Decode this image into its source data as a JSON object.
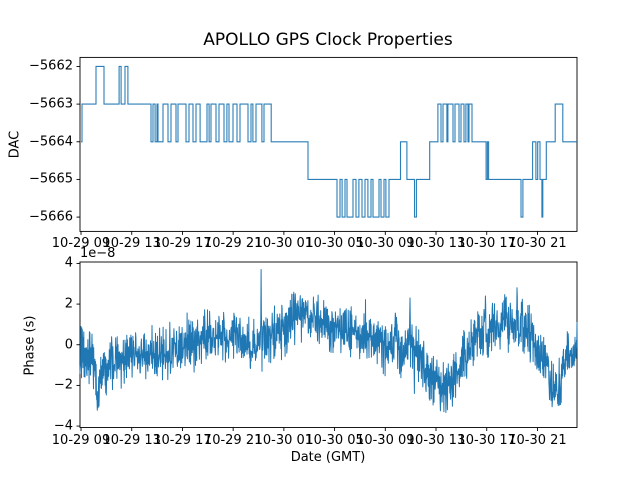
{
  "figure": {
    "title": "APOLLO GPS Clock Properties",
    "background": "#ffffff",
    "line_color": "#1f77b4"
  },
  "chart_data": [
    {
      "type": "line",
      "subtype": "step-post",
      "ylabel": "DAC",
      "yticks": [
        -5662,
        -5663,
        -5664,
        -5665,
        -5666
      ],
      "ytick_labels": [
        "−5662",
        "−5663",
        "−5664",
        "−5665",
        "−5666"
      ],
      "ylim": [
        -5666.38,
        -5661.76
      ],
      "x_unit_note": "hours after 10-29 09:00 GMT",
      "xlim": [
        -0.08,
        39.12
      ],
      "xticks": [
        0,
        4,
        8,
        12,
        16,
        20,
        24,
        28,
        32,
        36
      ],
      "xtick_labels": [
        "10-29 09",
        "10-29 13",
        "10-29 17",
        "10-29 21",
        "10-30 01",
        "10-30 05",
        "10-30 09",
        "10-30 13",
        "10-30 17",
        "10-30 21"
      ],
      "steps": [
        [
          0.0,
          -5664
        ],
        [
          0.08,
          -5663
        ],
        [
          1.18,
          -5662
        ],
        [
          1.81,
          -5663
        ],
        [
          3.0,
          -5662
        ],
        [
          3.16,
          -5663
        ],
        [
          3.47,
          -5662
        ],
        [
          3.7,
          -5663
        ],
        [
          5.52,
          -5664
        ],
        [
          5.68,
          -5663
        ],
        [
          5.84,
          -5664
        ],
        [
          5.99,
          -5663
        ],
        [
          6.07,
          -5664
        ],
        [
          6.47,
          -5663
        ],
        [
          6.86,
          -5664
        ],
        [
          7.1,
          -5663
        ],
        [
          7.49,
          -5664
        ],
        [
          7.65,
          -5663
        ],
        [
          8.28,
          -5664
        ],
        [
          8.52,
          -5663
        ],
        [
          8.83,
          -5664
        ],
        [
          9.07,
          -5663
        ],
        [
          9.39,
          -5664
        ],
        [
          9.94,
          -5663
        ],
        [
          10.1,
          -5664
        ],
        [
          10.25,
          -5663
        ],
        [
          10.65,
          -5664
        ],
        [
          10.88,
          -5663
        ],
        [
          11.28,
          -5664
        ],
        [
          11.51,
          -5663
        ],
        [
          11.67,
          -5664
        ],
        [
          11.99,
          -5663
        ],
        [
          12.3,
          -5664
        ],
        [
          12.54,
          -5663
        ],
        [
          13.17,
          -5664
        ],
        [
          13.41,
          -5663
        ],
        [
          13.56,
          -5664
        ],
        [
          13.8,
          -5663
        ],
        [
          14.27,
          -5664
        ],
        [
          14.43,
          -5663
        ],
        [
          15.0,
          -5664
        ],
        [
          17.9,
          -5665
        ],
        [
          20.19,
          -5666
        ],
        [
          20.43,
          -5665
        ],
        [
          20.59,
          -5666
        ],
        [
          20.82,
          -5665
        ],
        [
          20.98,
          -5666
        ],
        [
          21.45,
          -5665
        ],
        [
          21.69,
          -5666
        ],
        [
          21.92,
          -5665
        ],
        [
          22.16,
          -5666
        ],
        [
          22.4,
          -5665
        ],
        [
          22.63,
          -5666
        ],
        [
          22.87,
          -5665
        ],
        [
          23.03,
          -5666
        ],
        [
          23.5,
          -5665
        ],
        [
          23.66,
          -5666
        ],
        [
          23.9,
          -5665
        ],
        [
          24.05,
          -5666
        ],
        [
          24.29,
          -5665
        ],
        [
          25.2,
          -5664
        ],
        [
          25.7,
          -5665
        ],
        [
          26.3,
          -5666
        ],
        [
          26.45,
          -5665
        ],
        [
          27.5,
          -5664
        ],
        [
          28.15,
          -5663
        ],
        [
          28.39,
          -5664
        ],
        [
          28.55,
          -5663
        ],
        [
          28.86,
          -5664
        ],
        [
          28.94,
          -5663
        ],
        [
          29.34,
          -5664
        ],
        [
          29.5,
          -5663
        ],
        [
          29.81,
          -5664
        ],
        [
          29.97,
          -5663
        ],
        [
          30.21,
          -5664
        ],
        [
          30.36,
          -5663
        ],
        [
          30.52,
          -5664
        ],
        [
          30.6,
          -5663
        ],
        [
          30.84,
          -5664
        ],
        [
          31.95,
          -5665
        ],
        [
          32.05,
          -5664
        ],
        [
          32.15,
          -5665
        ],
        [
          34.7,
          -5666
        ],
        [
          34.85,
          -5665
        ],
        [
          35.62,
          -5664
        ],
        [
          35.88,
          -5665
        ],
        [
          36.02,
          -5664
        ],
        [
          36.2,
          -5665
        ],
        [
          36.35,
          -5666
        ],
        [
          36.42,
          -5665
        ],
        [
          36.7,
          -5664
        ],
        [
          37.4,
          -5663
        ],
        [
          38.0,
          -5664
        ]
      ]
    },
    {
      "type": "line",
      "ylabel": "Phase (s)",
      "xlabel": "Date (GMT)",
      "offset_text": "1e−8",
      "yticks": [
        4,
        2,
        0,
        -2,
        -4
      ],
      "ytick_labels": [
        "4",
        "2",
        "0",
        "−2",
        "−4"
      ],
      "ylim": [
        -4.07,
        4.07
      ],
      "xlim": [
        -0.08,
        39.12
      ],
      "xticks": [
        0,
        4,
        8,
        12,
        16,
        20,
        24,
        28,
        32,
        36
      ],
      "xtick_labels": [
        "10-29 09",
        "10-29 13",
        "10-29 17",
        "10-29 21",
        "10-30 01",
        "10-30 05",
        "10-30 09",
        "10-30 13",
        "10-30 17",
        "10-30 21"
      ],
      "units_scale": "1e-8 s",
      "n_points": 1700,
      "noise_halfband": 1.55,
      "trend": [
        [
          -0.08,
          -0.4
        ],
        [
          0.8,
          -0.6
        ],
        [
          1.3,
          -2.3
        ],
        [
          1.7,
          -1.5
        ],
        [
          2.5,
          -0.9
        ],
        [
          4.0,
          -0.6
        ],
        [
          6.0,
          -0.5
        ],
        [
          8.0,
          -0.2
        ],
        [
          9.5,
          0.2
        ],
        [
          11.0,
          0.3
        ],
        [
          12.0,
          0.4
        ],
        [
          13.0,
          0.1
        ],
        [
          14.0,
          -0.1
        ],
        [
          14.6,
          0.3
        ],
        [
          15.5,
          0.5
        ],
        [
          16.5,
          1.2
        ],
        [
          17.5,
          1.4
        ],
        [
          18.5,
          1.2
        ],
        [
          19.5,
          1.0
        ],
        [
          20.5,
          0.8
        ],
        [
          21.5,
          0.7
        ],
        [
          22.5,
          0.5
        ],
        [
          23.5,
          0.3
        ],
        [
          24.2,
          -0.3
        ],
        [
          24.8,
          0.4
        ],
        [
          25.4,
          -0.7
        ],
        [
          26.0,
          0.3
        ],
        [
          26.5,
          -0.5
        ],
        [
          27.2,
          -1.4
        ],
        [
          28.0,
          -1.7
        ],
        [
          28.6,
          -2.0
        ],
        [
          29.2,
          -1.9
        ],
        [
          29.8,
          -1.0
        ],
        [
          30.5,
          -0.2
        ],
        [
          31.2,
          0.5
        ],
        [
          32.0,
          0.6
        ],
        [
          32.7,
          0.9
        ],
        [
          33.4,
          1.0
        ],
        [
          34.1,
          0.8
        ],
        [
          34.9,
          0.9
        ],
        [
          35.6,
          0.3
        ],
        [
          36.1,
          -0.2
        ],
        [
          36.7,
          -1.0
        ],
        [
          37.3,
          -2.2
        ],
        [
          37.7,
          -1.9
        ],
        [
          38.3,
          -0.7
        ],
        [
          38.8,
          -0.1
        ],
        [
          39.12,
          0.4
        ]
      ],
      "spikes": [
        [
          1.35,
          -3.1
        ],
        [
          14.2,
          3.7
        ],
        [
          16.9,
          2.5
        ],
        [
          25.95,
          2.3
        ],
        [
          26.3,
          -2.4
        ],
        [
          28.9,
          -3.2
        ],
        [
          31.9,
          2.4
        ],
        [
          34.4,
          2.8
        ],
        [
          37.6,
          -2.9
        ]
      ]
    }
  ]
}
